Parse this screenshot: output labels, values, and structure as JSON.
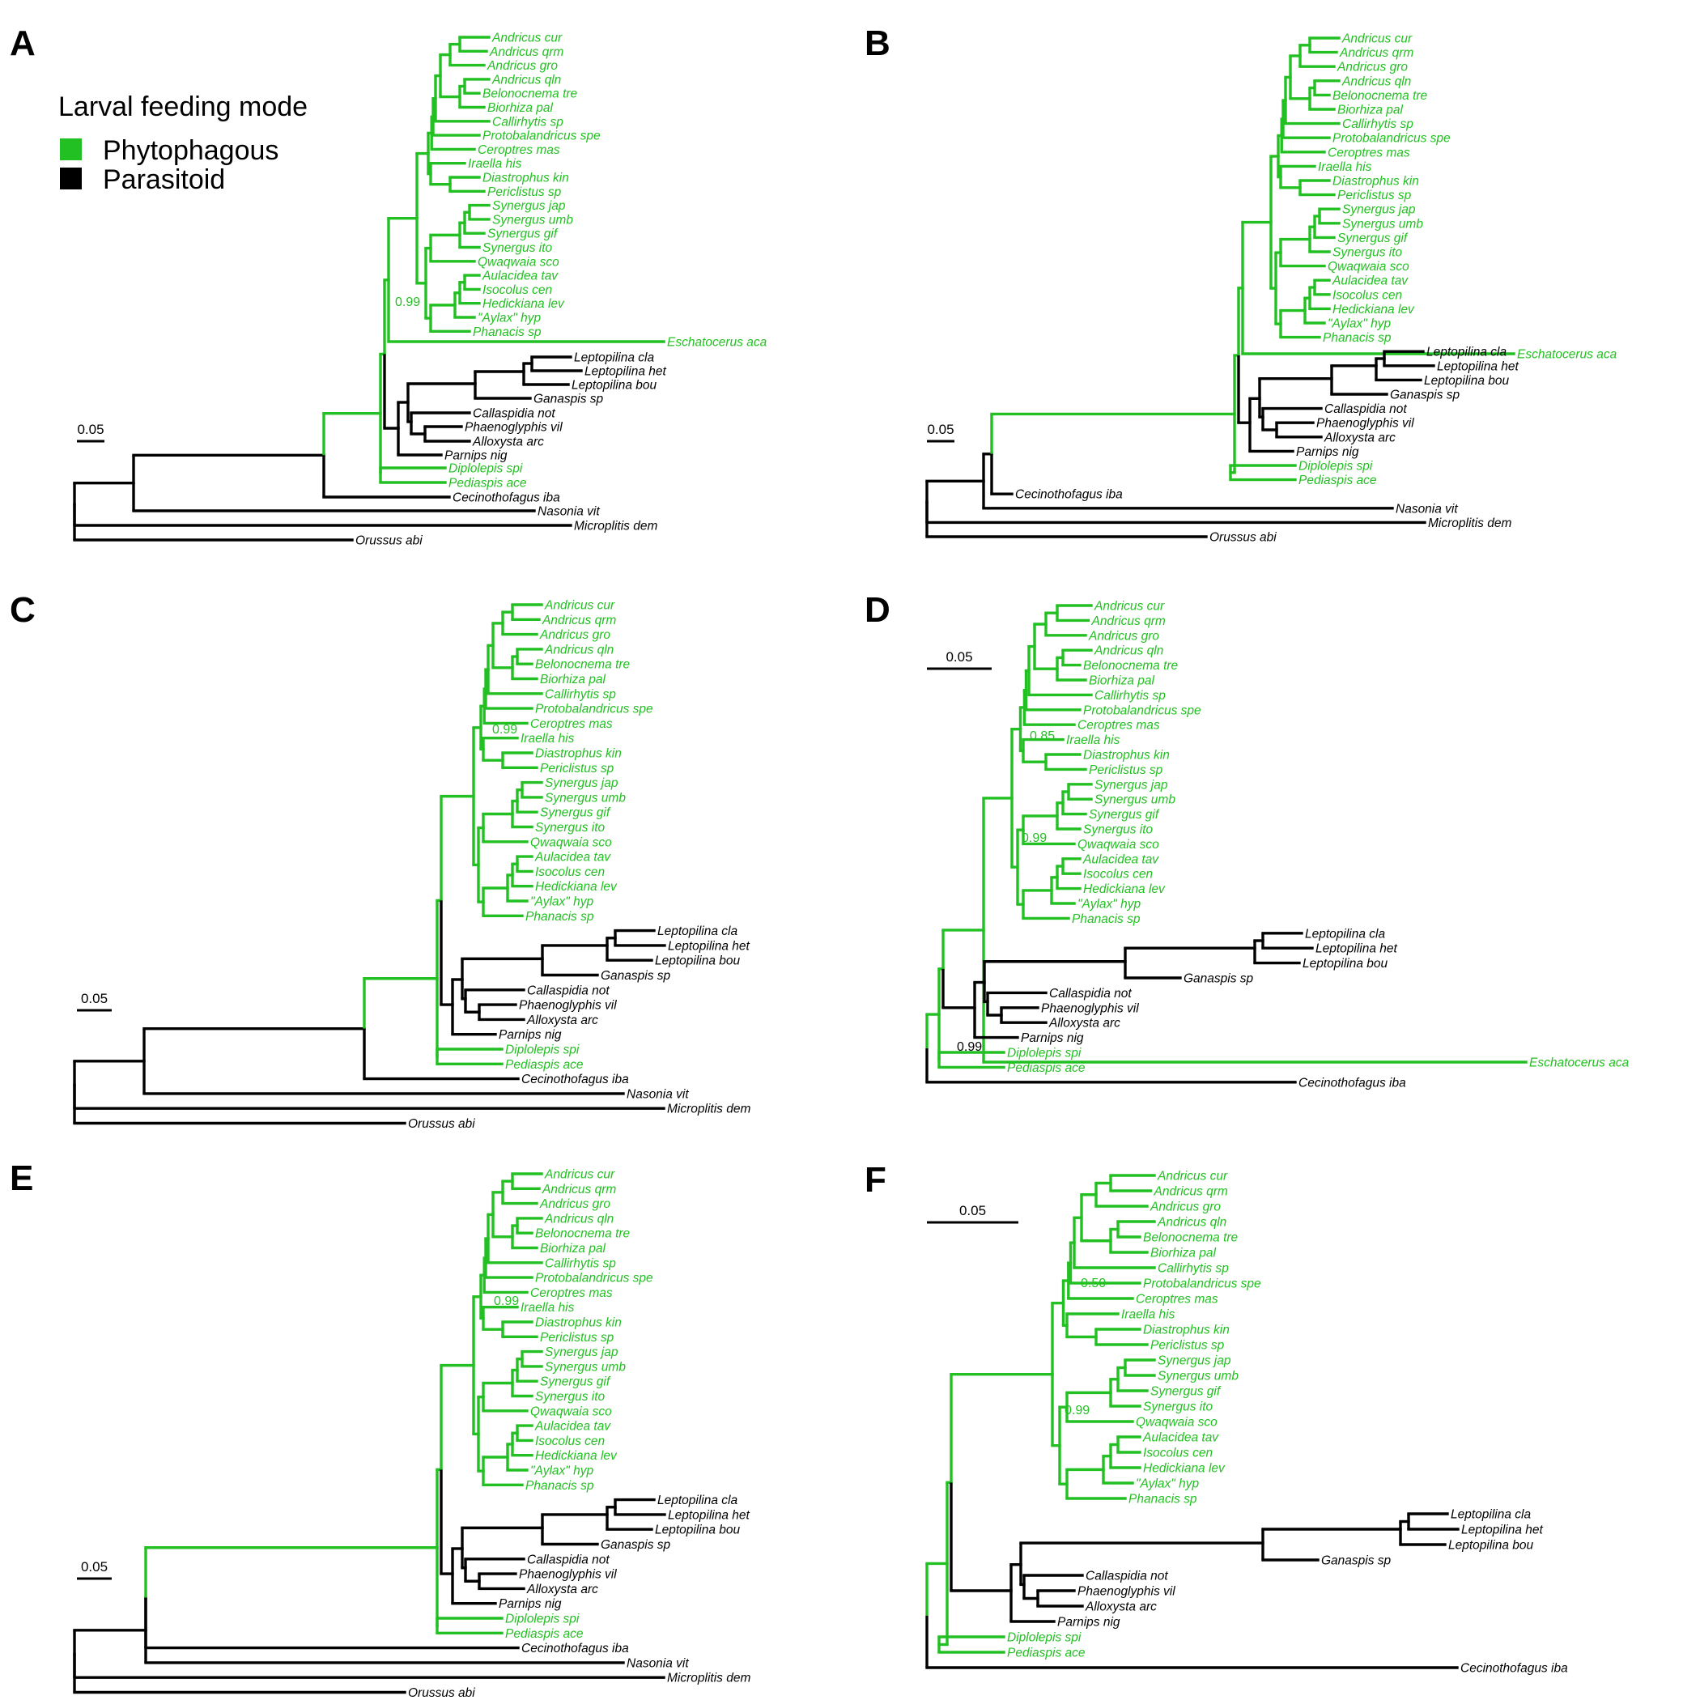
{
  "colors": {
    "phytophagous": "#22c022",
    "parasitoid": "#000000"
  },
  "legend": {
    "title": "Larval feeding mode",
    "items": [
      {
        "label": "Phytophagous",
        "color": "#22c022"
      },
      {
        "label": "Parasitoid",
        "color": "#000000"
      }
    ]
  },
  "scale_label": "0.05",
  "tips": {
    "cur": "Andricus cur",
    "qrm": "Andricus qrm",
    "gro": "Andricus gro",
    "qln": "Andricus qln",
    "tre": "Belonocnema tre",
    "pal": "Biorhiza pal",
    "cal": "Callirhytis sp",
    "pro": "Protobalandricus spe",
    "cer": "Ceroptres mas",
    "ira": "Iraella his",
    "dia": "Diastrophus kin",
    "per": "Periclistus sp",
    "jap": "Synergus jap",
    "umb": "Synergus umb",
    "gif": "Synergus gif",
    "ito": "Synergus ito",
    "qwa": "Qwaqwaia sco",
    "aul": "Aulacidea tav",
    "iso": "Isocolus cen",
    "hed": "Hedickiana lev",
    "ayl": "\"Aylax\" hyp",
    "pha": "Phanacis sp",
    "esc": "Eschatocerus aca",
    "lcl": "Leptopilina cla",
    "lhe": "Leptopilina het",
    "lbo": "Leptopilina bou",
    "gan": "Ganaspis sp",
    "cas": "Callaspidia not",
    "phv": "Phaenoglyphis vil",
    "all": "Alloxysta arc",
    "par": "Parnips nig",
    "dip": "Diplolepis spi",
    "ped": "Pediaspis ace",
    "cec": "Cecinothofagus iba",
    "nas": "Nasonia vit",
    "mic": "Microplitis dem",
    "oru": "Orussus abi"
  },
  "panels": [
    {
      "letter": "A",
      "support_labels": [
        "0.99"
      ]
    },
    {
      "letter": "B",
      "support_labels": []
    },
    {
      "letter": "C",
      "support_labels": [
        "0.99"
      ]
    },
    {
      "letter": "D",
      "support_labels": [
        "0.85",
        "0.99",
        "0.99"
      ]
    },
    {
      "letter": "E",
      "support_labels": [
        "0.99"
      ]
    },
    {
      "letter": "F",
      "support_labels": [
        "0.50",
        "0.99"
      ]
    }
  ]
}
